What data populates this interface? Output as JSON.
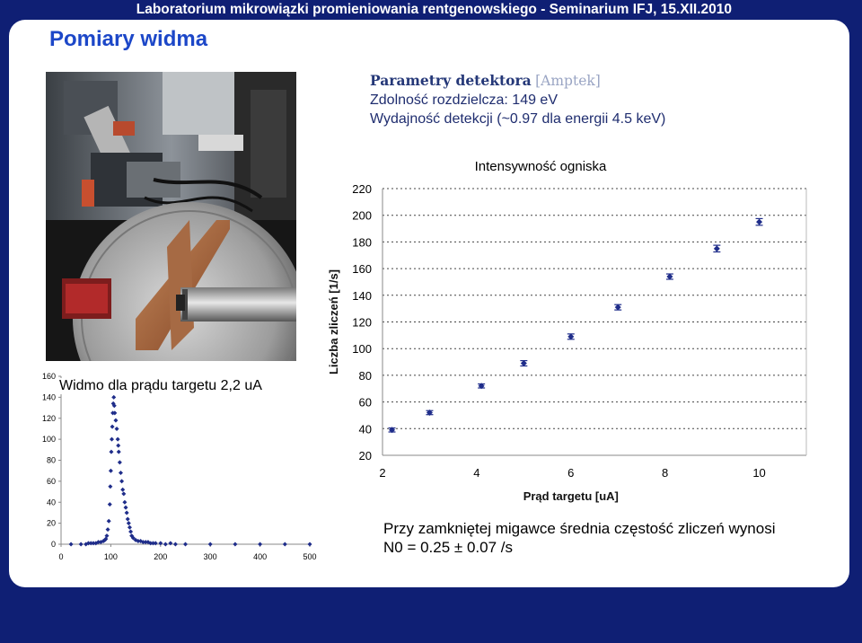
{
  "header": {
    "banner": "Laboratorium mikrowiązki promieniowania rentgenowskiego - Seminarium IFJ, 15.XII.2010",
    "title": "Pomiary widma"
  },
  "params": {
    "title": "Parametry detektora",
    "bracket": "[Amptek]",
    "line1": "Zdolność rozdzielcza: 149 eV",
    "line2": "Wydajność detekcji (~0.97 dla energii 4.5 keV)"
  },
  "photo": {
    "description_icon": "experimental-setup-photo"
  },
  "spectrum": {
    "label": "Widmo dla prądu targetu 2,2 uA",
    "x_ticks": [
      "0",
      "100",
      "200",
      "300",
      "400",
      "500"
    ],
    "y_ticks": [
      "0",
      "20",
      "40",
      "60",
      "80",
      "100",
      "120",
      "140",
      "160"
    ]
  },
  "chart_data": [
    {
      "type": "scatter",
      "title": "Widmo dla prądu targetu 2,2 uA",
      "xlabel": "",
      "ylabel": "",
      "xlim": [
        0,
        500
      ],
      "ylim": [
        0,
        160
      ],
      "color": "#1f2d8a",
      "points": [
        [
          20,
          0
        ],
        [
          40,
          0
        ],
        [
          50,
          0
        ],
        [
          55,
          1
        ],
        [
          60,
          1
        ],
        [
          65,
          1
        ],
        [
          70,
          1
        ],
        [
          75,
          2
        ],
        [
          80,
          2
        ],
        [
          85,
          3
        ],
        [
          88,
          4
        ],
        [
          90,
          5
        ],
        [
          92,
          8
        ],
        [
          94,
          14
        ],
        [
          96,
          22
        ],
        [
          98,
          38
        ],
        [
          99,
          55
        ],
        [
          100,
          70
        ],
        [
          101,
          88
        ],
        [
          102,
          100
        ],
        [
          103,
          112
        ],
        [
          104,
          125
        ],
        [
          105,
          134
        ],
        [
          106,
          140
        ],
        [
          107,
          132
        ],
        [
          108,
          125
        ],
        [
          110,
          118
        ],
        [
          112,
          110
        ],
        [
          114,
          100
        ],
        [
          115,
          94
        ],
        [
          116,
          88
        ],
        [
          118,
          78
        ],
        [
          120,
          68
        ],
        [
          122,
          60
        ],
        [
          124,
          52
        ],
        [
          126,
          48
        ],
        [
          128,
          40
        ],
        [
          130,
          35
        ],
        [
          132,
          30
        ],
        [
          134,
          24
        ],
        [
          136,
          20
        ],
        [
          138,
          16
        ],
        [
          140,
          12
        ],
        [
          142,
          8
        ],
        [
          145,
          6
        ],
        [
          150,
          4
        ],
        [
          155,
          3
        ],
        [
          160,
          3
        ],
        [
          165,
          2
        ],
        [
          170,
          2
        ],
        [
          175,
          2
        ],
        [
          180,
          1
        ],
        [
          185,
          1
        ],
        [
          190,
          1
        ],
        [
          200,
          1
        ],
        [
          210,
          0
        ],
        [
          220,
          1
        ],
        [
          230,
          0
        ],
        [
          250,
          0
        ],
        [
          300,
          0
        ],
        [
          350,
          0
        ],
        [
          400,
          0
        ],
        [
          450,
          0
        ],
        [
          500,
          0
        ]
      ]
    },
    {
      "type": "scatter",
      "title": "Intensywność ogniska",
      "xlabel": "Prąd targetu [uA]",
      "ylabel": "Liczba zliczeń [1/s]",
      "xlim": [
        2,
        11
      ],
      "ylim": [
        20,
        220
      ],
      "x_ticks": [
        "2",
        "4",
        "6",
        "8",
        "10"
      ],
      "y_ticks": [
        "20",
        "40",
        "60",
        "80",
        "100",
        "120",
        "140",
        "160",
        "180",
        "200",
        "220"
      ],
      "grid": true,
      "error_bars": true,
      "color": "#1f2d8a",
      "x": [
        2.2,
        3.0,
        4.1,
        5.0,
        6.0,
        7.0,
        8.1,
        9.1,
        10.0
      ],
      "y": [
        39,
        52,
        72,
        89,
        109,
        131,
        154,
        175,
        195
      ],
      "yerr": [
        1.5,
        1.5,
        1.5,
        2,
        2,
        2,
        2,
        2.5,
        2.5
      ]
    }
  ],
  "footnote": {
    "line1": "Przy zamkniętej migawce średnia częstość zliczeń wynosi",
    "line2": "N0 = 0.25 ± 0.07 /s"
  },
  "colors": {
    "background": "#0f1f74",
    "title": "#1c47c8",
    "marker": "#1f2d8a"
  }
}
